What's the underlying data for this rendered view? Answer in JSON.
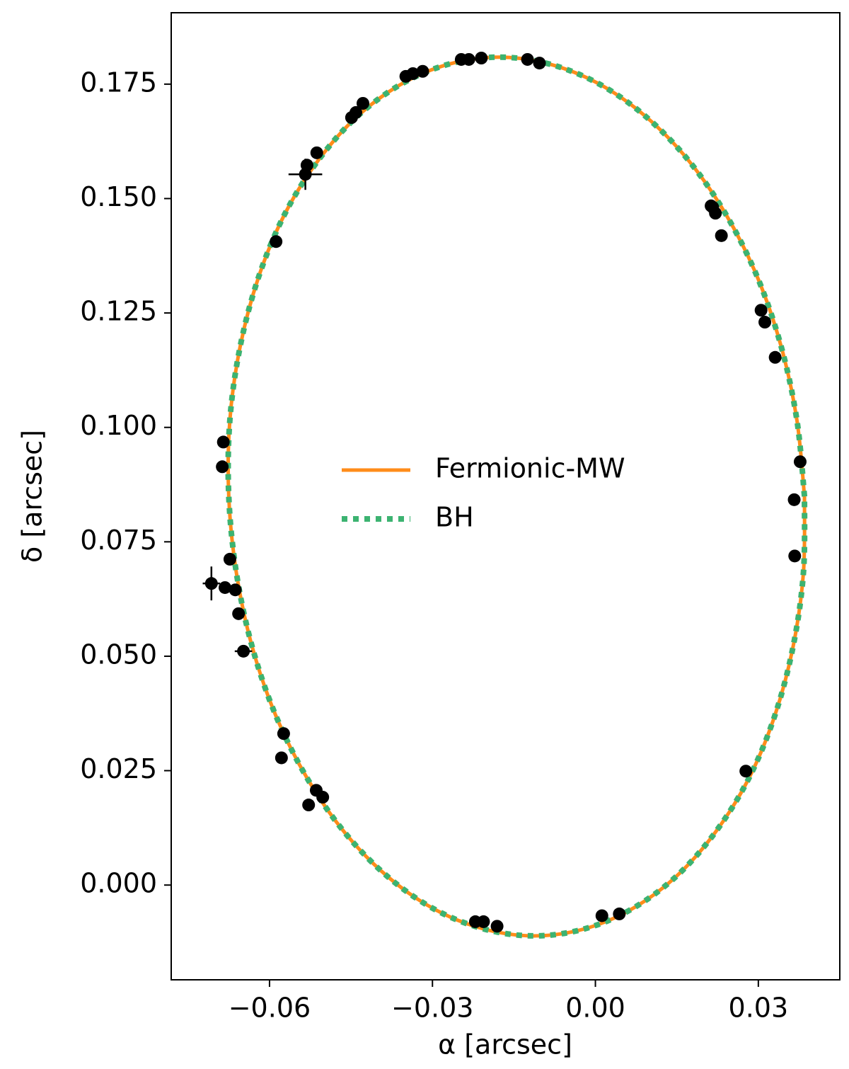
{
  "chart_data": {
    "type": "line",
    "xlabel": "α [arcsec]",
    "ylabel": "δ [arcsec]",
    "xlim": [
      -0.0781,
      0.045
    ],
    "ylim": [
      -0.0207,
      0.1906
    ],
    "xticks": [
      {
        "value": -0.06,
        "label": "−0.06"
      },
      {
        "value": -0.03,
        "label": "−0.03"
      },
      {
        "value": 0,
        "label": "0.00"
      },
      0.03
    ],
    "yticks": [
      {
        "value": 0,
        "label": "0.000"
      },
      0.025,
      {
        "value": 0.05,
        "label": "0.050"
      },
      0.075,
      {
        "value": 0.1,
        "label": "0.100"
      },
      0.125,
      {
        "value": 0.15,
        "label": "0.150"
      },
      0.175
    ],
    "legend": "center",
    "series": [
      {
        "name": "Fermionic-MW",
        "color": "#ff8c1a",
        "style": "solid",
        "x": [
          0.0385,
          0.0371,
          0.0342,
          0.0298,
          0.024,
          0.0171,
          0.0092,
          0.0006,
          -0.0085,
          -0.0177,
          -0.0269,
          -0.0356,
          -0.0438,
          -0.051,
          -0.0572,
          -0.062,
          -0.0654,
          -0.0673,
          -0.0675,
          -0.0661,
          -0.0632,
          -0.0588,
          -0.053,
          -0.0461,
          -0.0382,
          -0.0296,
          -0.0205,
          -0.0113,
          -0.0021,
          0.0066,
          0.0148,
          0.022,
          0.0282,
          0.033,
          0.0364,
          0.0383,
          0.0385
        ],
        "values": [
          0.0849,
          0.1016,
          0.1177,
          0.1329,
          0.1466,
          0.1584,
          0.168,
          0.1751,
          0.1794,
          0.1809,
          0.1794,
          0.1751,
          0.168,
          0.1584,
          0.1466,
          0.1329,
          0.1177,
          0.1016,
          0.0849,
          0.0682,
          0.0521,
          0.0369,
          0.0232,
          0.0114,
          0.0018,
          -0.0053,
          -0.0096,
          -0.0111,
          -0.0096,
          -0.0053,
          0.0018,
          0.0114,
          0.0232,
          0.0369,
          0.0521,
          0.0682,
          0.0849
        ]
      },
      {
        "name": "BH",
        "color": "#3cb371",
        "style": "dotted",
        "x": [
          0.0385,
          0.0371,
          0.0342,
          0.0298,
          0.024,
          0.0171,
          0.0092,
          0.0006,
          -0.0085,
          -0.0177,
          -0.0269,
          -0.0356,
          -0.0438,
          -0.051,
          -0.0572,
          -0.062,
          -0.0654,
          -0.0673,
          -0.0675,
          -0.0661,
          -0.0632,
          -0.0588,
          -0.053,
          -0.0461,
          -0.0382,
          -0.0296,
          -0.0205,
          -0.0113,
          -0.0021,
          0.0066,
          0.0148,
          0.022,
          0.0282,
          0.033,
          0.0364,
          0.0383,
          0.0385
        ],
        "values": [
          0.0849,
          0.1016,
          0.1177,
          0.1329,
          0.1466,
          0.1584,
          0.168,
          0.1751,
          0.1794,
          0.1809,
          0.1794,
          0.1751,
          0.168,
          0.1584,
          0.1466,
          0.1329,
          0.1177,
          0.1016,
          0.0849,
          0.0682,
          0.0521,
          0.0369,
          0.0232,
          0.0114,
          0.0018,
          -0.0053,
          -0.0096,
          -0.0111,
          -0.0096,
          -0.0053,
          0.0018,
          0.0114,
          0.0232,
          0.0369,
          0.0521,
          0.0682,
          0.0849
        ]
      }
    ],
    "points": {
      "color": "#000000",
      "x": [
        -0.0247,
        -0.0233,
        -0.021,
        -0.0125,
        -0.0103,
        -0.0349,
        -0.0336,
        -0.0318,
        -0.0441,
        -0.0428,
        -0.0513,
        -0.0531,
        -0.0588,
        -0.0685,
        -0.0687,
        -0.0673,
        -0.0682,
        -0.0663,
        -0.0657,
        -0.0574,
        -0.0578,
        -0.0514,
        -0.0528,
        -0.0502,
        -0.0221,
        -0.0206,
        -0.0181,
        0.0012,
        0.0044,
        0.0277,
        0.0213,
        0.0216,
        0.0221,
        0.0232,
        0.0305,
        0.0312,
        0.0331,
        0.0377,
        0.0366,
        0.0367
      ],
      "y": [
        0.1804,
        0.1804,
        0.1807,
        0.1804,
        0.1796,
        0.1767,
        0.1773,
        0.1778,
        0.1688,
        0.1708,
        0.16,
        0.1573,
        0.1406,
        0.0968,
        0.0914,
        0.0712,
        0.065,
        0.0645,
        0.0593,
        0.0331,
        0.0278,
        0.0207,
        0.0175,
        0.0192,
        -0.008,
        -0.008,
        -0.009,
        -0.0067,
        -0.0063,
        0.0249,
        0.1484,
        0.1481,
        0.1468,
        0.1419,
        0.1256,
        0.123,
        0.1153,
        0.0925,
        0.0842,
        0.0719
      ]
    },
    "error_points": {
      "color": "#000000",
      "x": [
        -0.0534,
        -0.0707,
        -0.0648,
        -0.0449
      ],
      "y": [
        0.1553,
        0.0659,
        0.0511,
        0.1677
      ],
      "xerr": [
        0.0031,
        0.0016,
        0.0016,
        0.001
      ],
      "yerr": [
        0.0034,
        0.0037,
        0.0003,
        0.0003
      ]
    }
  }
}
